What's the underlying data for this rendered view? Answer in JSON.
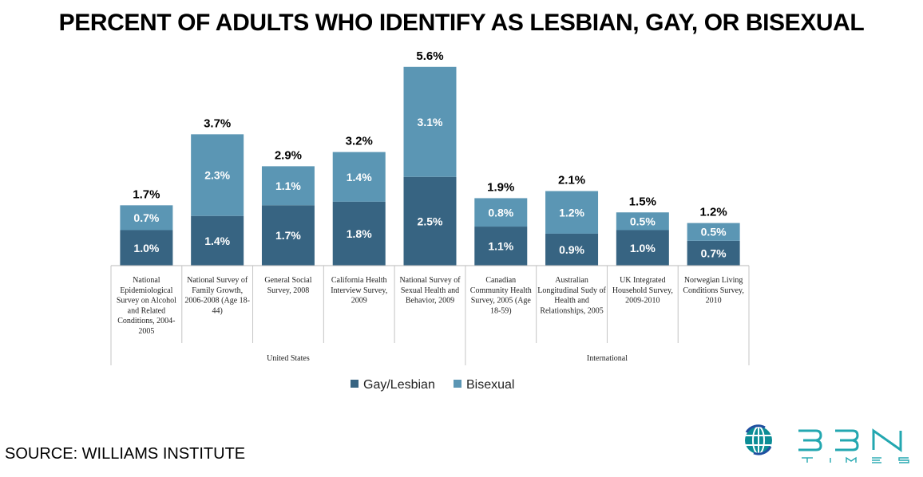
{
  "page": {
    "title": "PERCENT OF ADULTS WHO IDENTIFY AS LESBIAN, GAY, OR BISEXUAL",
    "source": "SOURCE: WILLIAMS INSTITUTE",
    "logo": {
      "icon": "globe-icon",
      "text": "BBN",
      "subtext": "TIMES"
    }
  },
  "chart_data": {
    "type": "bar",
    "stacked": true,
    "title": "PERCENT OF ADULTS WHO IDENTIFY AS LESBIAN, GAY, OR BISEXUAL",
    "unit": "%",
    "categories": [
      "National Epidemiological Survey on Alcohol and Related Conditions, 2004-2005",
      "National Survey of Family Growth, 2006-2008 (Age 18-44)",
      "General Social Survey, 2008",
      "California Health Interview Survey, 2009",
      "National Survey of Sexual Health and Behavior, 2009",
      "Canadian Community Health Survey, 2005 (Age 18-59)",
      "Australian Longitudinal Sudy of Health and Relationships, 2005",
      "UK Integrated Household Survey, 2009-2010",
      "Norwegian Living Conditions Survey, 2010"
    ],
    "category_lines": [
      [
        "National",
        "Epidemiological",
        "Survey on Alcohol",
        "and Related",
        "Conditions, 2004-",
        "2005"
      ],
      [
        "National Survey of",
        "Family Growth,",
        "2006-2008 (Age 18-",
        "44)"
      ],
      [
        "General Social",
        "Survey, 2008"
      ],
      [
        "California Health",
        "Interview Survey,",
        "2009"
      ],
      [
        "National Survey of",
        "Sexual Health and",
        "Behavior, 2009"
      ],
      [
        "Canadian",
        "Community Health",
        "Survey, 2005 (Age",
        "18-59)"
      ],
      [
        "Australian",
        "Longitudinal Sudy of",
        "Health and",
        "Relationships, 2005"
      ],
      [
        "UK Integrated",
        "Household Survey,",
        "2009-2010"
      ],
      [
        "Norwegian Living",
        "Conditions Survey,",
        "2010"
      ]
    ],
    "groups": [
      {
        "name": "United States",
        "count": 5
      },
      {
        "name": "International",
        "count": 4
      }
    ],
    "series": [
      {
        "name": "Gay/Lesbian",
        "color": "#376482",
        "values": [
          1.0,
          1.4,
          1.7,
          1.8,
          2.5,
          1.1,
          0.9,
          1.0,
          0.7
        ],
        "labels": [
          "1.0%",
          "1.4%",
          "1.7%",
          "1.8%",
          "2.5%",
          "1.1%",
          "0.9%",
          "1.0%",
          "0.7%"
        ]
      },
      {
        "name": "Bisexual",
        "color": "#5b96b4",
        "values": [
          0.7,
          2.3,
          1.1,
          1.4,
          3.1,
          0.8,
          1.2,
          0.5,
          0.5
        ],
        "labels": [
          "0.7%",
          "2.3%",
          "1.1%",
          "1.4%",
          "3.1%",
          "0.8%",
          "1.2%",
          "0.5%",
          "0.5%"
        ]
      }
    ],
    "totals": [
      1.7,
      3.7,
      2.9,
      3.2,
      5.6,
      1.9,
      2.1,
      1.5,
      1.2
    ],
    "total_labels": [
      "1.7%",
      "3.7%",
      "2.9%",
      "3.2%",
      "5.6%",
      "1.9%",
      "2.1%",
      "1.5%",
      "1.2%"
    ],
    "legend_position": "bottom",
    "ylim": [
      0,
      5.6
    ],
    "grid": false,
    "colors": {
      "axis": "#b8b8b8",
      "divider": "#c4c4c4"
    }
  }
}
